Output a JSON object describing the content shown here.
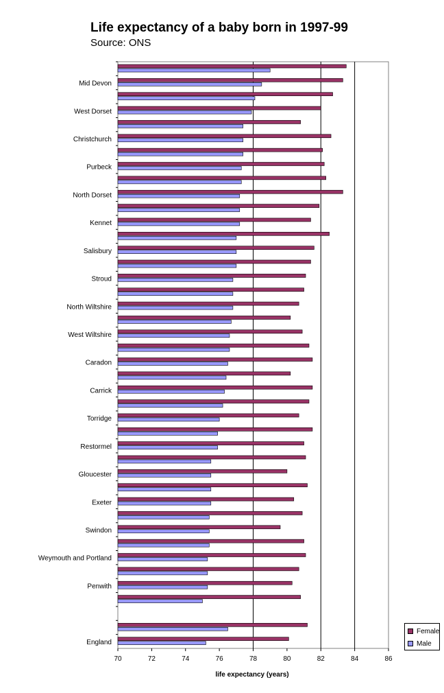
{
  "chart_data": {
    "type": "bar",
    "orientation": "horizontal",
    "title": "Life expectancy of a baby born in 1997-99",
    "subtitle": "Source: ONS",
    "xlabel": "life expectancy (years)",
    "ylabel": "",
    "xlim": [
      70,
      86
    ],
    "x_ticks": [
      "70",
      "72",
      "74",
      "76",
      "78",
      "80",
      "82",
      "84",
      "86"
    ],
    "grid": "vertical lines at 78, 82, 84",
    "legend_position": "bottom-right",
    "category_labels": [
      "Mid Devon",
      "West Dorset",
      "Christchurch",
      "Purbeck",
      "North Dorset",
      "Kennet",
      "Salisbury",
      "Stroud",
      "North Wiltshire",
      "West Wiltshire",
      "Caradon",
      "Carrick",
      "Torridge",
      "Restormel",
      "Gloucester",
      "Exeter",
      "Swindon",
      "Weymouth and Portland",
      "Penwith",
      "England"
    ],
    "rows": [
      {
        "label": "",
        "female": 83.5,
        "male": 79.0
      },
      {
        "label": "Mid Devon",
        "female": 83.3,
        "male": 78.5
      },
      {
        "label": "",
        "female": 82.7,
        "male": 78.1
      },
      {
        "label": "West Dorset",
        "female": 82.0,
        "male": 77.9
      },
      {
        "label": "",
        "female": 80.8,
        "male": 77.4
      },
      {
        "label": "Christchurch",
        "female": 82.6,
        "male": 77.4
      },
      {
        "label": "",
        "female": 82.1,
        "male": 77.4
      },
      {
        "label": "Purbeck",
        "female": 82.2,
        "male": 77.3
      },
      {
        "label": "",
        "female": 82.3,
        "male": 77.3
      },
      {
        "label": "North Dorset",
        "female": 83.3,
        "male": 77.2
      },
      {
        "label": "",
        "female": 81.9,
        "male": 77.2
      },
      {
        "label": "Kennet",
        "female": 81.4,
        "male": 77.2
      },
      {
        "label": "",
        "female": 82.5,
        "male": 77.0
      },
      {
        "label": "Salisbury",
        "female": 81.6,
        "male": 77.0
      },
      {
        "label": "",
        "female": 81.4,
        "male": 77.0
      },
      {
        "label": "Stroud",
        "female": 81.1,
        "male": 76.8
      },
      {
        "label": "",
        "female": 81.0,
        "male": 76.8
      },
      {
        "label": "North Wiltshire",
        "female": 80.7,
        "male": 76.8
      },
      {
        "label": "",
        "female": 80.2,
        "male": 76.7
      },
      {
        "label": "West Wiltshire",
        "female": 80.9,
        "male": 76.6
      },
      {
        "label": "",
        "female": 81.3,
        "male": 76.6
      },
      {
        "label": "Caradon",
        "female": 81.5,
        "male": 76.5
      },
      {
        "label": "",
        "female": 80.2,
        "male": 76.4
      },
      {
        "label": "Carrick",
        "female": 81.5,
        "male": 76.3
      },
      {
        "label": "",
        "female": 81.3,
        "male": 76.2
      },
      {
        "label": "Torridge",
        "female": 80.7,
        "male": 76.0
      },
      {
        "label": "",
        "female": 81.5,
        "male": 75.9
      },
      {
        "label": "Restormel",
        "female": 81.0,
        "male": 75.9
      },
      {
        "label": "",
        "female": 81.1,
        "male": 75.5
      },
      {
        "label": "Gloucester",
        "female": 80.0,
        "male": 75.5
      },
      {
        "label": "",
        "female": 81.2,
        "male": 75.5
      },
      {
        "label": "Exeter",
        "female": 80.4,
        "male": 75.5
      },
      {
        "label": "",
        "female": 80.9,
        "male": 75.4
      },
      {
        "label": "Swindon",
        "female": 79.6,
        "male": 75.4
      },
      {
        "label": "",
        "female": 81.0,
        "male": 75.4
      },
      {
        "label": "Weymouth and Portland",
        "female": 81.1,
        "male": 75.3
      },
      {
        "label": "",
        "female": 80.7,
        "male": 75.3
      },
      {
        "label": "Penwith",
        "female": 80.3,
        "male": 75.3
      },
      {
        "label": "",
        "female": 80.8,
        "male": 75.0
      },
      {
        "label": "",
        "female": null,
        "male": null
      },
      {
        "label": "",
        "female": 81.2,
        "male": 76.5
      },
      {
        "label": "England",
        "female": 80.1,
        "male": 75.2
      }
    ],
    "series": [
      {
        "name": "Female",
        "color": "#993366"
      },
      {
        "name": "Male",
        "color": "#9999ff"
      }
    ]
  }
}
